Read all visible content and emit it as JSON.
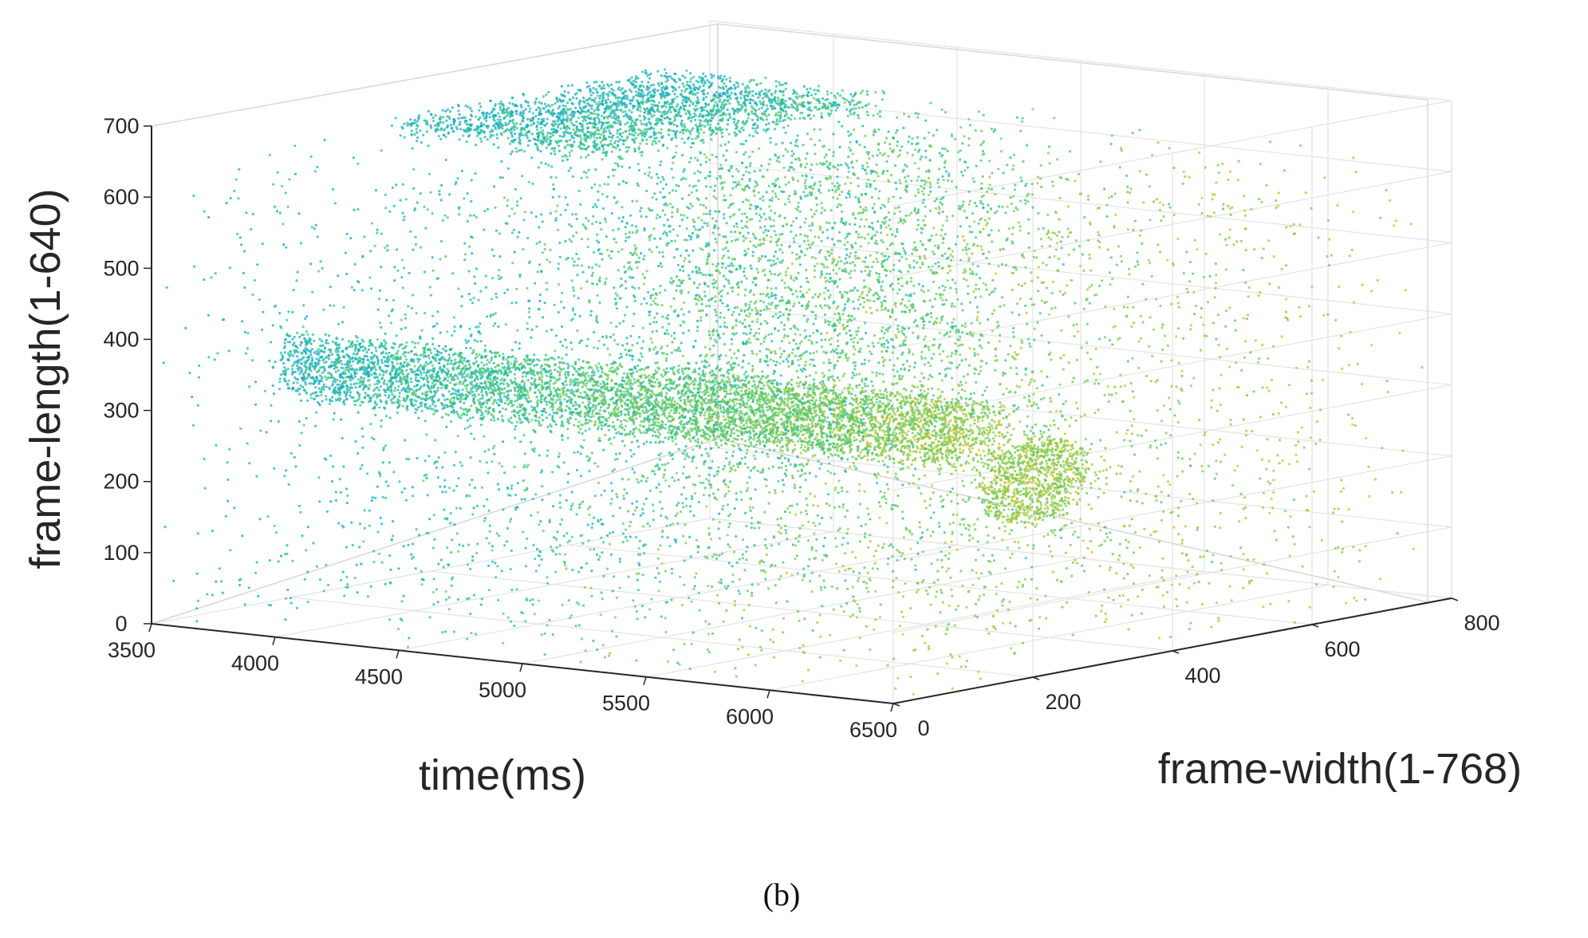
{
  "chart_data": {
    "type": "scatter",
    "subtype": "3d-point-cloud",
    "caption": "(b)",
    "x_axis": {
      "label": "time(ms)",
      "ticks": [
        "3500",
        "4000",
        "4500",
        "5000",
        "5500",
        "6000",
        "6500"
      ],
      "range": [
        3500,
        6500
      ]
    },
    "y_axis": {
      "label": "frame-width(1-768)",
      "ticks": [
        "0",
        "200",
        "400",
        "600",
        "800"
      ],
      "range": [
        0,
        800
      ]
    },
    "z_axis": {
      "label": "frame-length(1-640)",
      "ticks": [
        "0",
        "100",
        "200",
        "300",
        "400",
        "500",
        "600",
        "700"
      ],
      "range": [
        0,
        700
      ]
    },
    "grid": true,
    "colormap": [
      "#3e26a8",
      "#1f90e6",
      "#14b8b2",
      "#63cb5b",
      "#c1c42a",
      "#f9c92c"
    ],
    "point_clusters": [
      {
        "shape": "uniform-noise",
        "t": [
          3500,
          6500
        ],
        "w": [
          0,
          768
        ],
        "l": [
          0,
          640
        ]
      },
      {
        "shape": "horizontal-sheet",
        "t": [
          3600,
          4500
        ],
        "w": [
          300,
          700
        ],
        "l": [
          630,
          660
        ]
      },
      {
        "shape": "horizontal-cylinder",
        "t": [
          3700,
          5200
        ],
        "w": [
          100,
          150
        ],
        "l": [
          300,
          400
        ]
      },
      {
        "shape": "horizontal-cylinder",
        "t": [
          5000,
          6300
        ],
        "w": [
          150,
          250
        ],
        "l": [
          280,
          380
        ]
      },
      {
        "shape": "vertical-wall",
        "t": [
          4500,
          5200
        ],
        "w": [
          250,
          700
        ],
        "l": [
          200,
          650
        ]
      },
      {
        "shape": "disc",
        "t": [
          6000,
          6300
        ],
        "w": [
          250,
          400
        ],
        "l": [
          180,
          300
        ]
      }
    ]
  }
}
